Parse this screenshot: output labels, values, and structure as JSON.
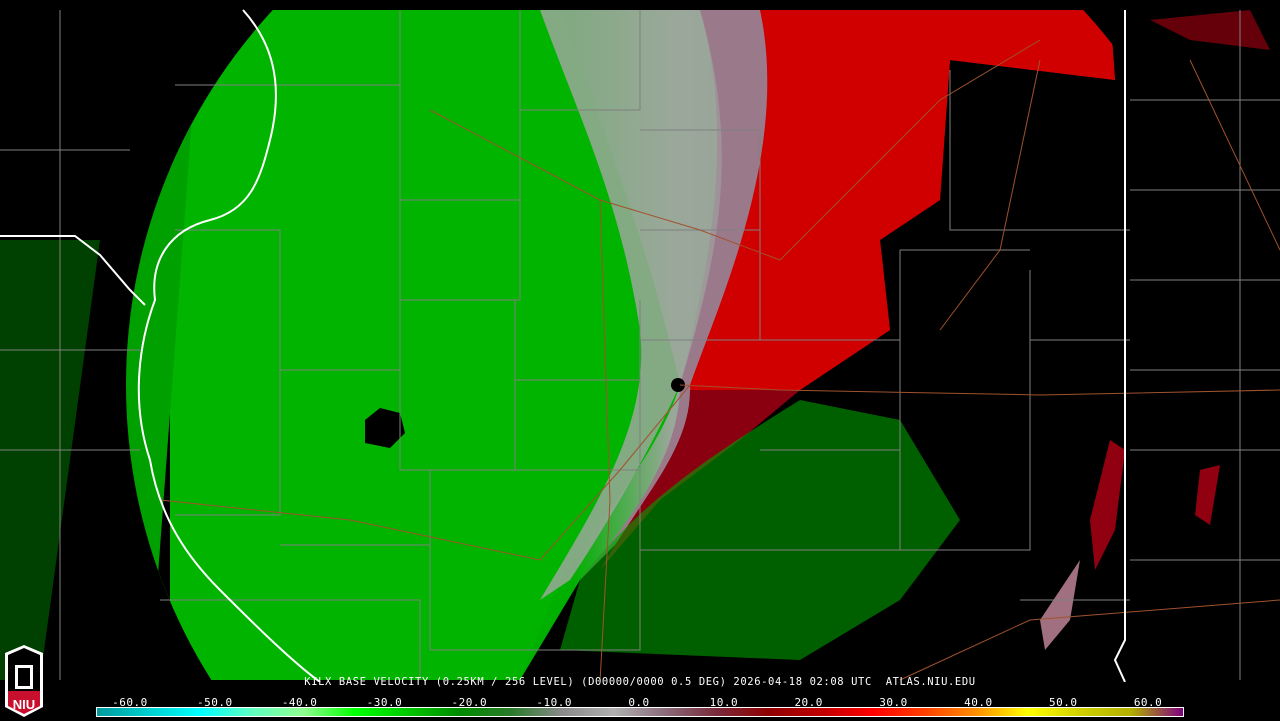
{
  "product": {
    "caption": "KILX BASE VELOCITY (0.25KM / 256 LEVEL) (D00000/0000 0.5 DEG) 2026-04-18 02:08 UTC  ATLAS.NIU.EDU"
  },
  "logo": {
    "text": "NIU",
    "icon": "niu-tower-logo-icon"
  },
  "legend": {
    "unit_hint": "velocity",
    "ticks": [
      "-60.0",
      "-50.0",
      "-40.0",
      "-30.0",
      "-20.0",
      "-10.0",
      "0.0",
      "10.0",
      "20.0",
      "30.0",
      "40.0",
      "50.0",
      "60.0"
    ],
    "tick_values": [
      -60,
      -50,
      -40,
      -30,
      -20,
      -10,
      0,
      10,
      20,
      30,
      40,
      50,
      60
    ],
    "range": [
      -64,
      64
    ],
    "colors": [
      "#009a9a",
      "#00d0d0",
      "#00ffff",
      "#60ffc0",
      "#90ff90",
      "#00ff00",
      "#00c800",
      "#008c00",
      "#2a7a2a",
      "#8a8a8a",
      "#b0b0b0",
      "#8a6a7a",
      "#7a2a3a",
      "#900000",
      "#c00000",
      "#ff0000",
      "#ff4000",
      "#ff9000",
      "#ffff00",
      "#d0d000",
      "#b0b000",
      "#800080"
    ]
  },
  "colors": {
    "inbound": "#00b400",
    "outbound": "#c80000",
    "state_line": "#ffffff",
    "county_line": "#808080",
    "highway": "#a0522d"
  }
}
